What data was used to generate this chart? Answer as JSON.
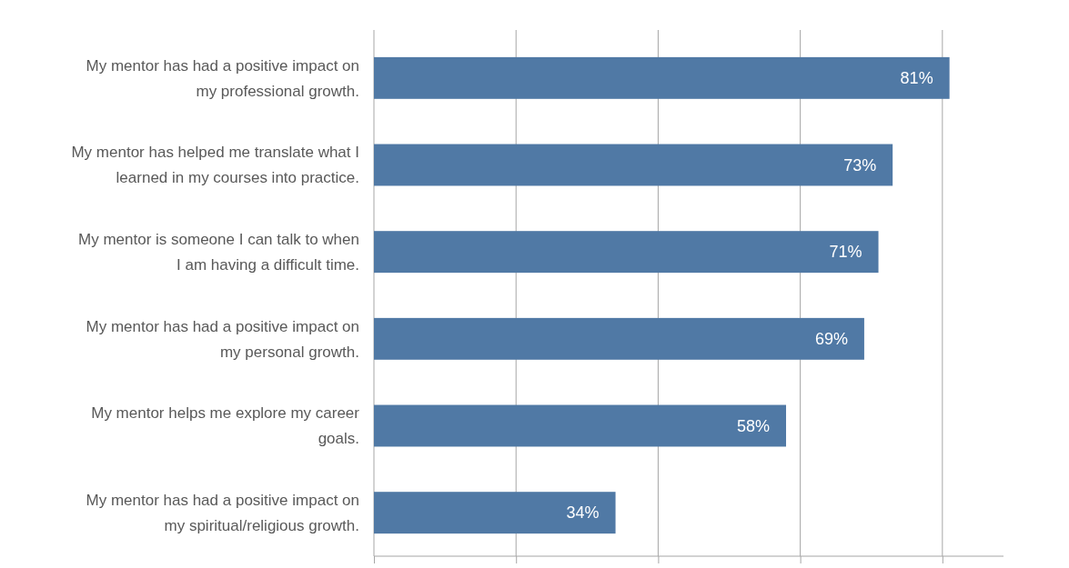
{
  "chart_data": {
    "type": "bar",
    "orientation": "horizontal",
    "categories": [
      "My mentor has had a positive impact on my professional growth.",
      "My mentor has helped me translate what I learned in my courses into practice.",
      "My mentor is someone I can talk to when I am having a difficult time.",
      "My mentor has had a positive impact on my personal growth.",
      "My mentor helps me explore my career goals.",
      "My mentor has had a positive impact on my spiritual/religious growth."
    ],
    "values": [
      81,
      73,
      71,
      69,
      58,
      34
    ],
    "value_labels": [
      "81%",
      "73%",
      "71%",
      "69%",
      "58%",
      "34%"
    ],
    "color": "#5079a5",
    "xlim": [
      0,
      88.6
    ],
    "xticks": [
      {
        "value": 0,
        "label": null
      },
      {
        "value": 20,
        "label": null
      },
      {
        "value": 40,
        "label": null
      },
      {
        "value": 60,
        "label": null
      },
      {
        "value": 80,
        "label": null
      }
    ],
    "grid": "x",
    "tick_labels": "y"
  }
}
